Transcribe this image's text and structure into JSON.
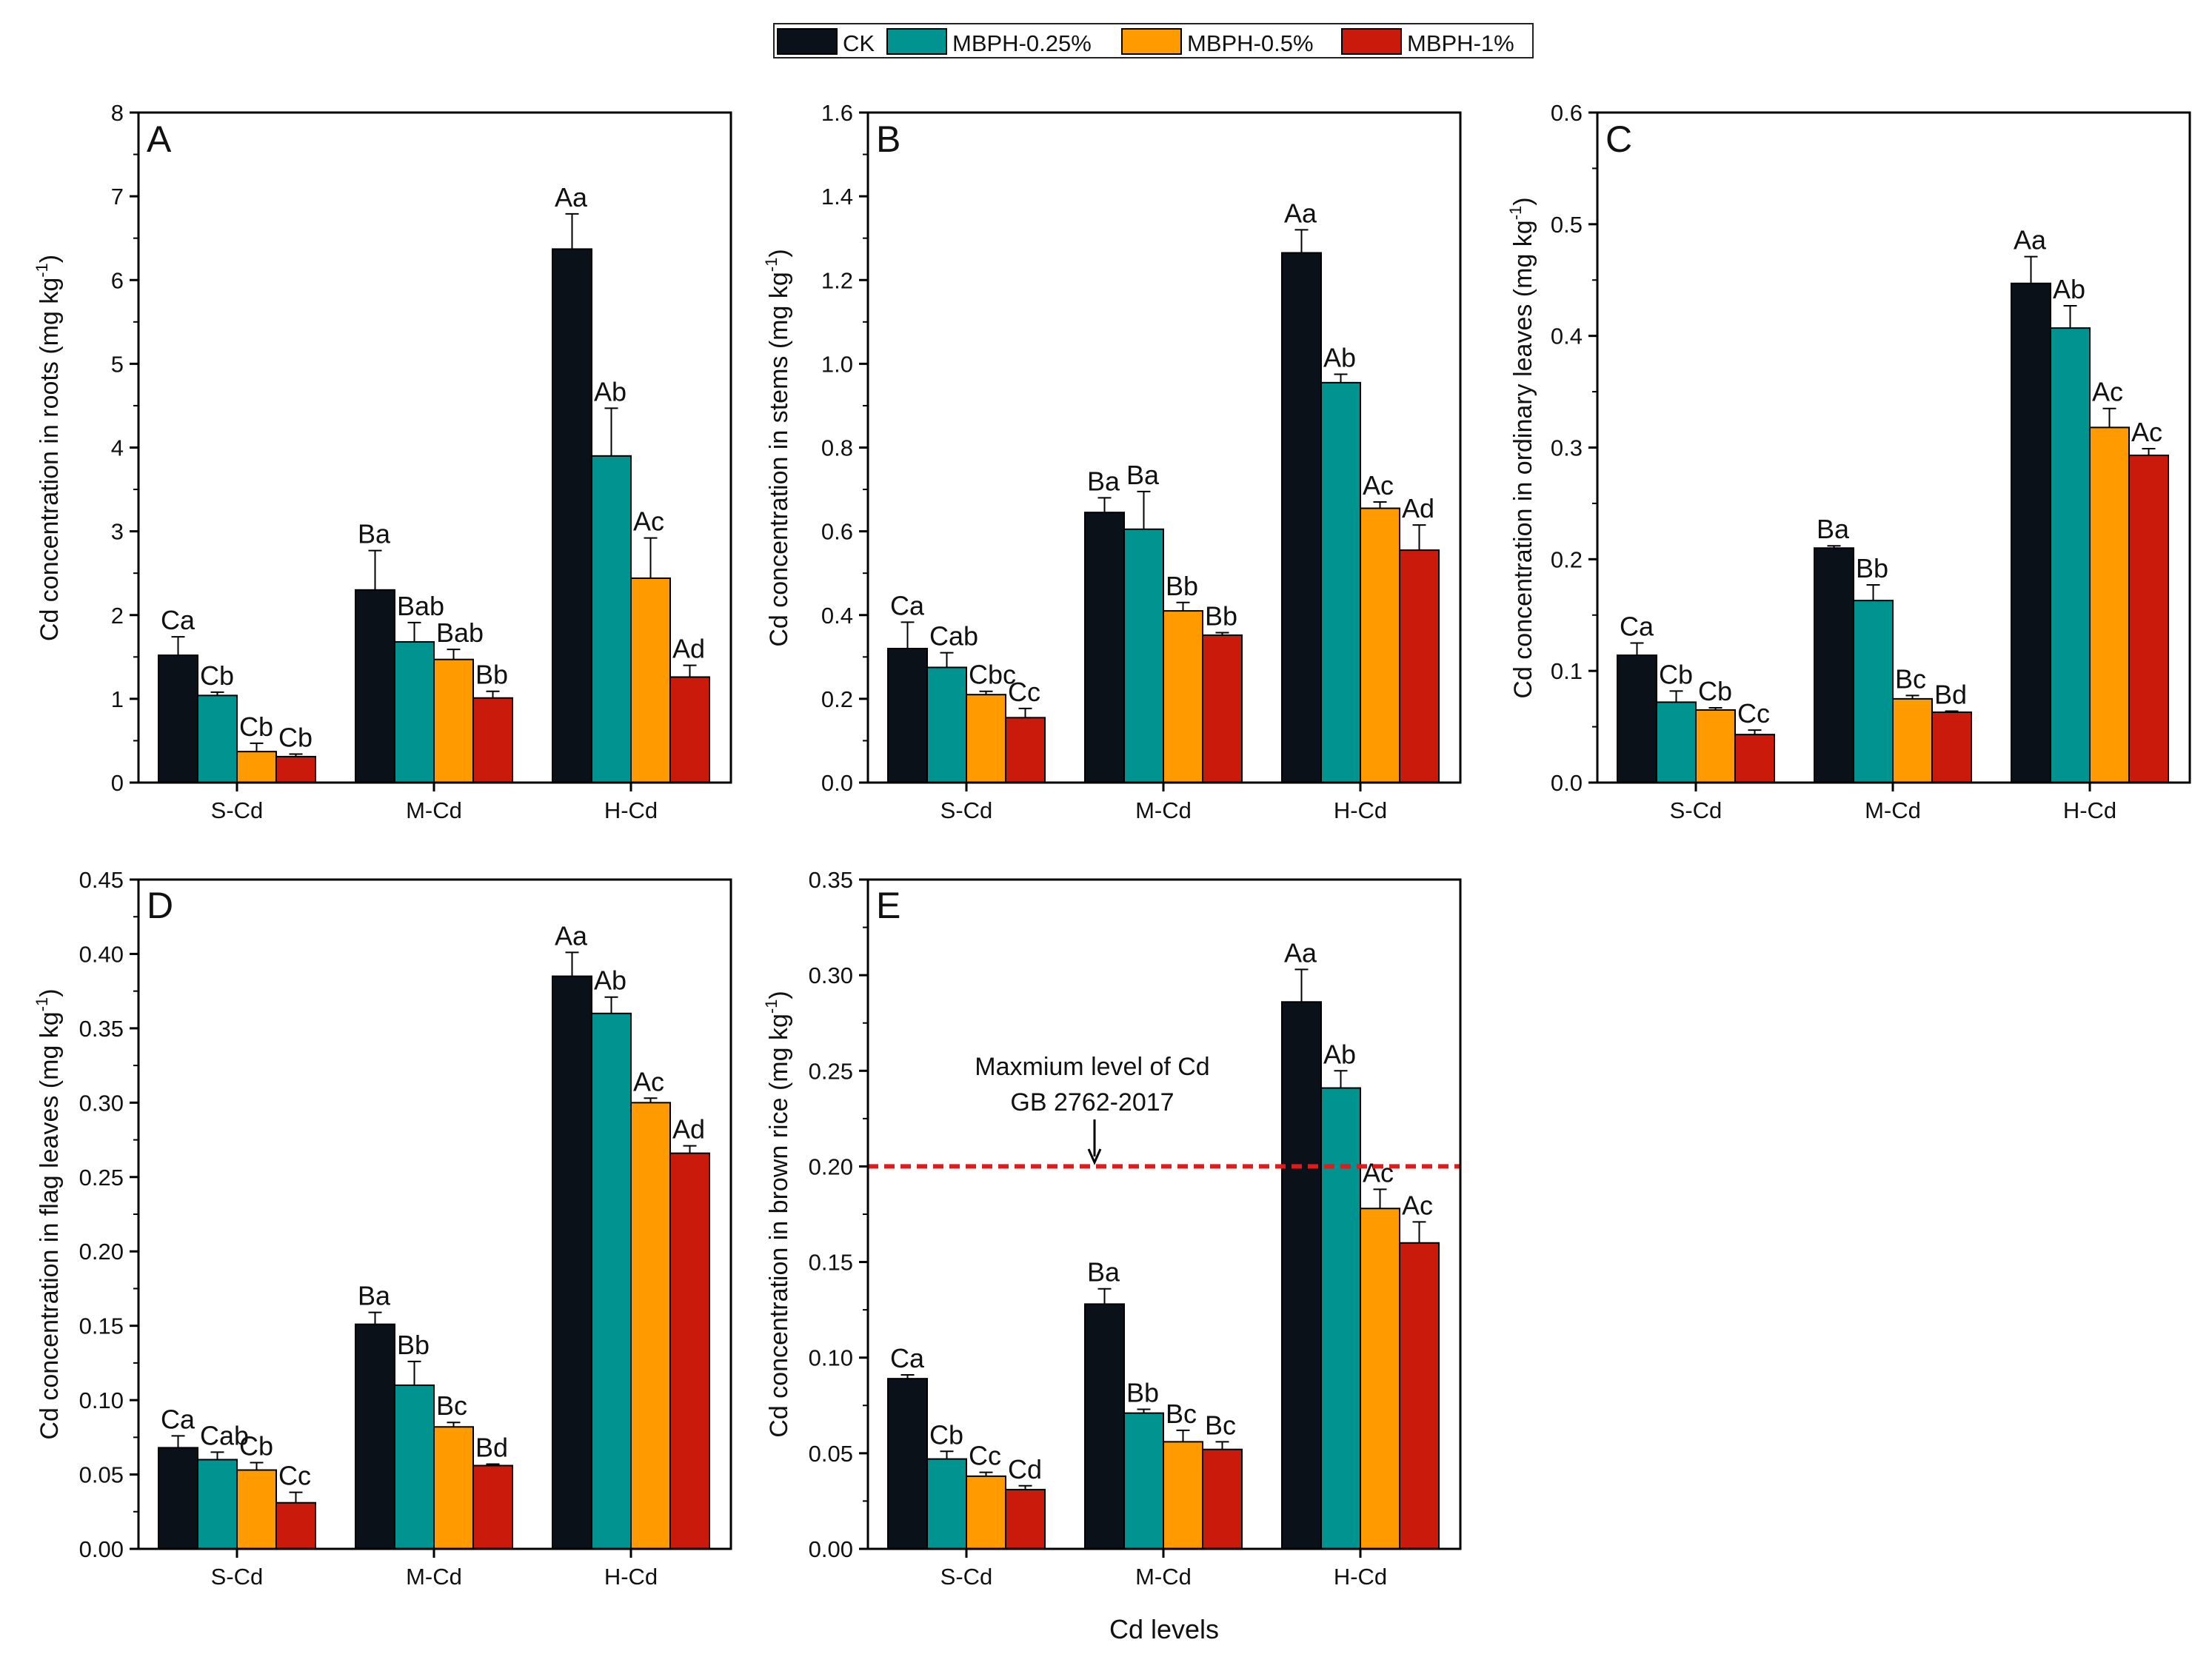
{
  "figure": {
    "xlabel_common": "Cd levels"
  },
  "legend": [
    {
      "name": "CK",
      "color": "#0a1119"
    },
    {
      "name": "MBPH-0.25%",
      "color": "#00938f"
    },
    {
      "name": "MBPH-0.5%",
      "color": "#ff9a00"
    },
    {
      "name": "MBPH-1%",
      "color": "#c91a0c"
    }
  ],
  "chart_data": [
    {
      "type": "bar",
      "panel_label": "A",
      "categories": [
        "S-Cd",
        "M-Cd",
        "H-Cd"
      ],
      "ylabel_main": "Cd concentration in roots (mg kg",
      "ylabel_sup": "-1",
      "ylabel_end": ")",
      "ylim": [
        0,
        8
      ],
      "yticks": [
        "0",
        "1",
        "2",
        "3",
        "4",
        "5",
        "6",
        "7",
        "8"
      ],
      "series": [
        {
          "name": "CK",
          "values": [
            1.52,
            2.3,
            6.37
          ],
          "errors": [
            0.22,
            0.47,
            0.42
          ],
          "labels": [
            "Ca",
            "Ba",
            "Aa"
          ]
        },
        {
          "name": "MBPH-0.25%",
          "values": [
            1.04,
            1.68,
            3.9
          ],
          "errors": [
            0.04,
            0.23,
            0.57
          ],
          "labels": [
            "Cb",
            "Bab",
            "Ab"
          ]
        },
        {
          "name": "MBPH-0.5%",
          "values": [
            0.37,
            1.47,
            2.44
          ],
          "errors": [
            0.1,
            0.12,
            0.48
          ],
          "labels": [
            "Cb",
            "Bab",
            "Ac"
          ]
        },
        {
          "name": "MBPH-1%",
          "values": [
            0.31,
            1.01,
            1.26
          ],
          "errors": [
            0.03,
            0.08,
            0.14
          ],
          "labels": [
            "Cb",
            "Bb",
            "Ad"
          ]
        }
      ]
    },
    {
      "type": "bar",
      "panel_label": "B",
      "categories": [
        "S-Cd",
        "M-Cd",
        "H-Cd"
      ],
      "ylabel_main": "Cd concentration in stems (mg kg",
      "ylabel_sup": "-1",
      "ylabel_end": ")",
      "ylim": [
        0,
        1.6
      ],
      "yticks": [
        "0.0",
        "0.2",
        "0.4",
        "0.6",
        "0.8",
        "1.0",
        "1.2",
        "1.4",
        "1.6"
      ],
      "series": [
        {
          "name": "CK",
          "values": [
            0.32,
            0.645,
            1.265
          ],
          "errors": [
            0.063,
            0.035,
            0.055
          ],
          "labels": [
            "Ca",
            "Ba",
            "Aa"
          ]
        },
        {
          "name": "MBPH-0.25%",
          "values": [
            0.275,
            0.605,
            0.955
          ],
          "errors": [
            0.035,
            0.09,
            0.02
          ],
          "labels": [
            "Cab",
            "Ba",
            "Ab"
          ]
        },
        {
          "name": "MBPH-0.5%",
          "values": [
            0.21,
            0.41,
            0.655
          ],
          "errors": [
            0.008,
            0.02,
            0.015
          ],
          "labels": [
            "Cbc",
            "Bb",
            "Ac"
          ]
        },
        {
          "name": "MBPH-1%",
          "values": [
            0.155,
            0.352,
            0.555
          ],
          "errors": [
            0.022,
            0.006,
            0.06
          ],
          "labels": [
            "Cc",
            "Bb",
            "Ad"
          ]
        }
      ]
    },
    {
      "type": "bar",
      "panel_label": "C",
      "categories": [
        "S-Cd",
        "M-Cd",
        "H-Cd"
      ],
      "ylabel_main": "Cd concentration in ordinary leaves (mg kg",
      "ylabel_sup": "-1",
      "ylabel_end": ")",
      "ylim": [
        0,
        0.6
      ],
      "yticks": [
        "0.0",
        "0.1",
        "0.2",
        "0.3",
        "0.4",
        "0.5",
        "0.6"
      ],
      "series": [
        {
          "name": "CK",
          "values": [
            0.114,
            0.21,
            0.447
          ],
          "errors": [
            0.011,
            0.002,
            0.024
          ],
          "labels": [
            "Ca",
            "Ba",
            "Aa"
          ]
        },
        {
          "name": "MBPH-0.25%",
          "values": [
            0.072,
            0.163,
            0.407
          ],
          "errors": [
            0.01,
            0.014,
            0.02
          ],
          "labels": [
            "Cb",
            "Bb",
            "Ab"
          ]
        },
        {
          "name": "MBPH-0.5%",
          "values": [
            0.065,
            0.075,
            0.318
          ],
          "errors": [
            0.002,
            0.003,
            0.017
          ],
          "labels": [
            "Cb",
            "Bc",
            "Ac"
          ]
        },
        {
          "name": "MBPH-1%",
          "values": [
            0.043,
            0.063,
            0.293
          ],
          "errors": [
            0.004,
            0.001,
            0.006
          ],
          "labels": [
            "Cc",
            "Bd",
            "Ac"
          ]
        }
      ]
    },
    {
      "type": "bar",
      "panel_label": "D",
      "categories": [
        "S-Cd",
        "M-Cd",
        "H-Cd"
      ],
      "ylabel_main": "Cd concentration in flag leaves (mg kg",
      "ylabel_sup": "-1",
      "ylabel_end": ")",
      "ylim": [
        0,
        0.45
      ],
      "yticks": [
        "0.00",
        "0.05",
        "0.10",
        "0.15",
        "0.20",
        "0.25",
        "0.30",
        "0.35",
        "0.40",
        "0.45"
      ],
      "series": [
        {
          "name": "CK",
          "values": [
            0.068,
            0.151,
            0.385
          ],
          "errors": [
            0.008,
            0.008,
            0.016
          ],
          "labels": [
            "Ca",
            "Ba",
            "Aa"
          ]
        },
        {
          "name": "MBPH-0.25%",
          "values": [
            0.06,
            0.11,
            0.36
          ],
          "errors": [
            0.005,
            0.016,
            0.011
          ],
          "labels": [
            "Cab",
            "Bb",
            "Ab"
          ]
        },
        {
          "name": "MBPH-0.5%",
          "values": [
            0.053,
            0.082,
            0.3
          ],
          "errors": [
            0.005,
            0.003,
            0.003
          ],
          "labels": [
            "Cb",
            "Bc",
            "Ac"
          ]
        },
        {
          "name": "MBPH-1%",
          "values": [
            0.031,
            0.056,
            0.266
          ],
          "errors": [
            0.007,
            0.001,
            0.005
          ],
          "labels": [
            "Cc",
            "Bd",
            "Ad"
          ]
        }
      ]
    },
    {
      "type": "bar",
      "panel_label": "E",
      "categories": [
        "S-Cd",
        "M-Cd",
        "H-Cd"
      ],
      "ylabel_main": "Cd concentration in brown rice (mg kg",
      "ylabel_sup": "-1",
      "ylabel_end": ")",
      "ylim": [
        0,
        0.35
      ],
      "yticks": [
        "0.00",
        "0.05",
        "0.10",
        "0.15",
        "0.20",
        "0.25",
        "0.30",
        "0.35"
      ],
      "series": [
        {
          "name": "CK",
          "values": [
            0.089,
            0.128,
            0.286
          ],
          "errors": [
            0.002,
            0.008,
            0.017
          ],
          "labels": [
            "Ca",
            "Ba",
            "Aa"
          ]
        },
        {
          "name": "MBPH-0.25%",
          "values": [
            0.047,
            0.071,
            0.241
          ],
          "errors": [
            0.004,
            0.002,
            0.009
          ],
          "labels": [
            "Cb",
            "Bb",
            "Ab"
          ]
        },
        {
          "name": "MBPH-0.5%",
          "values": [
            0.038,
            0.056,
            0.178
          ],
          "errors": [
            0.002,
            0.006,
            0.01
          ],
          "labels": [
            "Cc",
            "Bc",
            "Ac"
          ]
        },
        {
          "name": "MBPH-1%",
          "values": [
            0.031,
            0.052,
            0.16
          ],
          "errors": [
            0.002,
            0.004,
            0.011
          ],
          "labels": [
            "Cd",
            "Bc",
            "Ac"
          ]
        }
      ],
      "reference_line": {
        "value": 0.2,
        "color": "#e41a1a",
        "annotation_line1": "Maxmium level of Cd",
        "annotation_line2": "GB 2762-2017"
      }
    }
  ]
}
